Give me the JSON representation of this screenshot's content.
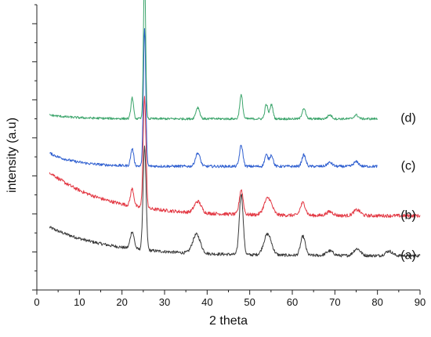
{
  "chart_data": {
    "type": "line",
    "xlabel": "2 theta",
    "ylabel": "intensity (a.u)",
    "xlim": [
      0,
      90
    ],
    "x_ticks": [
      0,
      10,
      20,
      30,
      40,
      50,
      60,
      70,
      80,
      90
    ],
    "y_tick_labels_shown": false,
    "grid": false,
    "legend": "labels at right end of each trace",
    "series": [
      {
        "label": "(a)",
        "color": "#3a3a3a",
        "x_range": [
          3,
          90
        ],
        "baseline": 0.9,
        "background": {
          "start": 0.75,
          "decay": 14
        },
        "noise": 0.04,
        "peaks": [
          [
            22.4,
            0.45,
            0.45
          ],
          [
            25.3,
            2.7,
            0.35
          ],
          [
            37.5,
            0.5,
            0.9
          ],
          [
            48.0,
            1.6,
            0.45
          ],
          [
            54.2,
            0.55,
            0.9
          ],
          [
            62.5,
            0.5,
            0.55
          ],
          [
            68.8,
            0.12,
            0.8
          ],
          [
            75.2,
            0.18,
            0.8
          ],
          [
            82.7,
            0.12,
            0.8
          ]
        ]
      },
      {
        "label": "(b)",
        "color": "#e33a45",
        "x_range": [
          3,
          90
        ],
        "baseline": 1.95,
        "background": {
          "start": 1.15,
          "decay": 13
        },
        "noise": 0.045,
        "peaks": [
          [
            22.4,
            0.45,
            0.4
          ],
          [
            25.3,
            2.9,
            0.33
          ],
          [
            37.8,
            0.3,
            0.8
          ],
          [
            48.0,
            0.65,
            0.45
          ],
          [
            54.3,
            0.45,
            0.9
          ],
          [
            62.5,
            0.33,
            0.6
          ],
          [
            68.8,
            0.1,
            0.8
          ],
          [
            75.2,
            0.15,
            0.8
          ]
        ]
      },
      {
        "label": "(c)",
        "color": "#2f5fd0",
        "x_range": [
          3,
          80
        ],
        "baseline": 3.25,
        "background": {
          "start": 0.35,
          "decay": 6
        },
        "noise": 0.035,
        "peaks": [
          [
            22.4,
            0.45,
            0.35
          ],
          [
            25.3,
            3.6,
            0.28
          ],
          [
            37.8,
            0.35,
            0.55
          ],
          [
            48.0,
            0.55,
            0.4
          ],
          [
            53.9,
            0.3,
            0.4
          ],
          [
            55.1,
            0.3,
            0.4
          ],
          [
            62.7,
            0.3,
            0.45
          ],
          [
            68.8,
            0.1,
            0.6
          ],
          [
            75.0,
            0.12,
            0.6
          ]
        ]
      },
      {
        "label": "(d)",
        "color": "#3aa46a",
        "x_range": [
          3,
          80
        ],
        "baseline": 4.5,
        "background": {
          "start": 0.1,
          "decay": 6
        },
        "noise": 0.03,
        "peaks": [
          [
            22.4,
            0.55,
            0.3
          ],
          [
            25.3,
            3.9,
            0.25
          ],
          [
            37.8,
            0.3,
            0.45
          ],
          [
            48.0,
            0.62,
            0.35
          ],
          [
            53.9,
            0.38,
            0.35
          ],
          [
            55.1,
            0.38,
            0.35
          ],
          [
            62.7,
            0.28,
            0.4
          ],
          [
            68.8,
            0.1,
            0.5
          ],
          [
            75.0,
            0.1,
            0.5
          ]
        ]
      }
    ]
  }
}
